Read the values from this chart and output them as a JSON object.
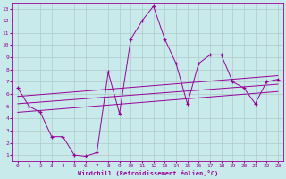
{
  "xlabel": "Windchill (Refroidissement éolien,°C)",
  "bg_color": "#c8eaea",
  "grid_color": "#b0c8c8",
  "line_color": "#990099",
  "xlim": [
    -0.5,
    23.5
  ],
  "ylim": [
    0.5,
    13.5
  ],
  "xticks": [
    0,
    1,
    2,
    3,
    4,
    5,
    6,
    7,
    8,
    9,
    10,
    11,
    12,
    13,
    14,
    15,
    16,
    17,
    18,
    19,
    20,
    21,
    22,
    23
  ],
  "yticks": [
    1,
    2,
    3,
    4,
    5,
    6,
    7,
    8,
    9,
    10,
    11,
    12,
    13
  ],
  "series": {
    "main": {
      "x": [
        0,
        1,
        2,
        3,
        4,
        5,
        6,
        7,
        8,
        9,
        10,
        11,
        12,
        13,
        14,
        15,
        16,
        17,
        18,
        19,
        20,
        21,
        22,
        23
      ],
      "y": [
        6.5,
        5.0,
        4.5,
        2.5,
        2.5,
        1.0,
        0.9,
        1.2,
        7.8,
        4.4,
        10.5,
        12.0,
        13.2,
        10.5,
        8.5,
        5.2,
        8.5,
        9.2,
        9.2,
        7.0,
        6.5,
        5.2,
        7.0,
        7.2
      ]
    },
    "line1": {
      "x": [
        0,
        23
      ],
      "y": [
        5.8,
        7.5
      ]
    },
    "line2": {
      "x": [
        0,
        23
      ],
      "y": [
        5.2,
        6.8
      ]
    },
    "line3": {
      "x": [
        0,
        23
      ],
      "y": [
        4.5,
        6.2
      ]
    }
  }
}
